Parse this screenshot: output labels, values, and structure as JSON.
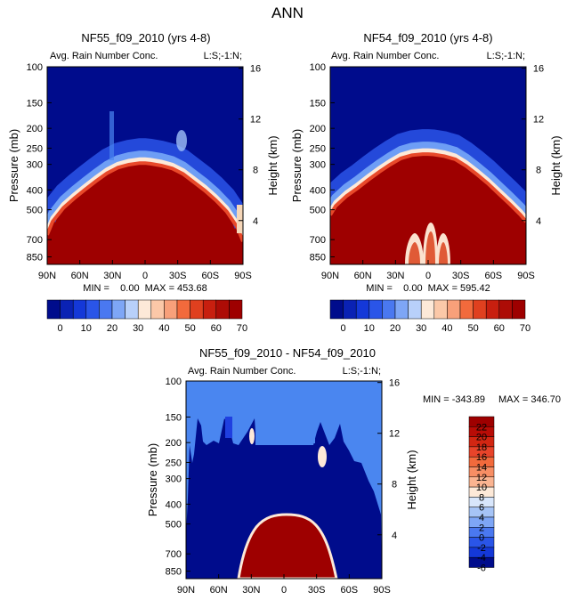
{
  "page_title": "ANN",
  "colors": {
    "dark_blue": "#000c8c",
    "blue": "#1f3fe0",
    "light_blue": "#4a86f0",
    "dark_red": "#9e0000",
    "cream": "#fde9d8"
  },
  "chart_data": [
    {
      "id": "top-left",
      "type": "heatmap",
      "title": "NF55_f09_2010 (yrs 4-8)",
      "subtitle": "Avg. Rain Number Conc.",
      "right_annotation": "L:S;-1:N;",
      "xlabel": "",
      "ylabel": "Pressure (mb)",
      "y2label": "Height (km)",
      "x_ticks": [
        "90N",
        "60N",
        "30N",
        "0",
        "30S",
        "60S",
        "90S"
      ],
      "x_tick_values": [
        90,
        60,
        30,
        0,
        -30,
        -60,
        -90
      ],
      "y_ticks": [
        100,
        150,
        200,
        250,
        300,
        400,
        500,
        700,
        850
      ],
      "y2_ticks": [
        4,
        8,
        12,
        16
      ],
      "ylim": [
        100,
        925
      ],
      "xlim": [
        90,
        -90
      ],
      "stats": "MIN =    0.00  MAX = 453.68",
      "min": 0.0,
      "max": 453.68,
      "top_pressure_profile": {
        "lat": [
          90,
          85,
          75,
          65,
          55,
          45,
          35,
          25,
          15,
          5,
          0,
          -5,
          -15,
          -25,
          -35,
          -45,
          -55,
          -65,
          -75,
          -85,
          -90
        ],
        "pressure": [
          650,
          560,
          480,
          430,
          390,
          355,
          325,
          305,
          295,
          290,
          290,
          292,
          298,
          308,
          328,
          360,
          395,
          440,
          500,
          600,
          700
        ]
      },
      "levels": [
        0,
        5,
        10,
        15,
        20,
        25,
        30,
        35,
        40,
        45,
        50,
        55,
        60,
        65,
        70
      ],
      "colorbar_labels": [
        "0",
        "10",
        "20",
        "30",
        "40",
        "50",
        "60",
        "70"
      ]
    },
    {
      "id": "top-right",
      "type": "heatmap",
      "title": "NF54_f09_2010 (yrs 4-8)",
      "subtitle": "Avg. Rain Number Conc.",
      "right_annotation": "L:S;-1:N;",
      "xlabel": "",
      "ylabel": "Pressure (mb)",
      "y2label": "Height (km)",
      "x_ticks": [
        "90N",
        "60N",
        "30N",
        "0",
        "30S",
        "60S",
        "90S"
      ],
      "x_tick_values": [
        90,
        60,
        30,
        0,
        -30,
        -60,
        -90
      ],
      "y_ticks": [
        100,
        150,
        200,
        250,
        300,
        400,
        500,
        700,
        850
      ],
      "y2_ticks": [
        4,
        8,
        12,
        16
      ],
      "ylim": [
        100,
        925
      ],
      "xlim": [
        90,
        -90
      ],
      "stats": "MIN =    0.00  MAX = 595.42",
      "min": 0.0,
      "max": 595.42,
      "top_pressure_profile": {
        "lat": [
          90,
          85,
          75,
          65,
          55,
          45,
          35,
          25,
          15,
          5,
          0,
          -5,
          -15,
          -25,
          -35,
          -45,
          -55,
          -65,
          -75,
          -85,
          -90
        ],
        "pressure": [
          520,
          470,
          420,
          385,
          350,
          320,
          295,
          275,
          265,
          262,
          262,
          263,
          268,
          278,
          300,
          330,
          365,
          410,
          460,
          520,
          560
        ]
      },
      "levels": [
        0,
        5,
        10,
        15,
        20,
        25,
        30,
        35,
        40,
        45,
        50,
        55,
        60,
        65,
        70
      ],
      "colorbar_labels": [
        "0",
        "10",
        "20",
        "30",
        "40",
        "50",
        "60",
        "70"
      ]
    },
    {
      "id": "bottom-difference",
      "type": "heatmap",
      "title": "NF55_f09_2010 - NF54_f09_2010",
      "subtitle": "Avg. Rain Number Conc.",
      "right_annotation": "L:S;-1:N;",
      "xlabel": "",
      "ylabel": "Pressure (mb)",
      "y2label": "Height (km)",
      "x_ticks": [
        "90N",
        "60N",
        "30N",
        "0",
        "30S",
        "60S",
        "90S"
      ],
      "x_tick_values": [
        90,
        60,
        30,
        0,
        -30,
        -60,
        -90
      ],
      "y_ticks": [
        100,
        150,
        200,
        250,
        300,
        400,
        500,
        700,
        850
      ],
      "y2_ticks": [
        4,
        8,
        12,
        16
      ],
      "ylim": [
        100,
        925
      ],
      "xlim": [
        90,
        -90
      ],
      "stats_min": "MIN = -343.89",
      "stats_max": "MAX = 346.70",
      "min": -343.89,
      "max": 346.7,
      "levels": [
        -6,
        -4,
        -2,
        0,
        2,
        4,
        6,
        8,
        10,
        12,
        14,
        16,
        18,
        20,
        22
      ],
      "colorbar_labels": [
        "22",
        "20",
        "18",
        "16",
        "14",
        "12",
        "10",
        "8",
        "6",
        "4",
        "2",
        "0",
        "-2",
        "-4",
        "-6"
      ]
    }
  ]
}
